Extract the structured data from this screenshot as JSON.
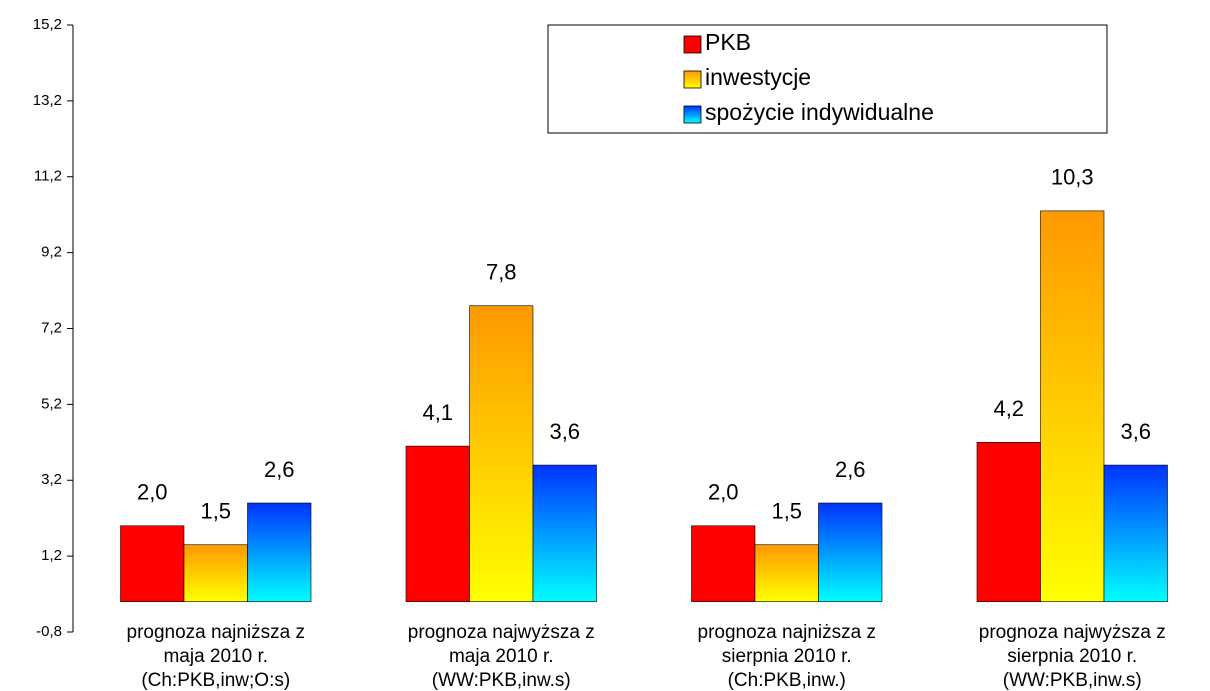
{
  "chart_data": {
    "type": "bar",
    "categories": [
      [
        "prognoza najniższa z",
        "maja 2010 r.",
        "(Ch:PKB,inw;O:s)"
      ],
      [
        "prognoza najwyższa z",
        "maja 2010 r.",
        "(WW:PKB,inw.s)"
      ],
      [
        "prognoza najniższa z",
        "sierpnia 2010 r.",
        "(Ch:PKB,inw.)"
      ],
      [
        "prognoza najwyższa z",
        "sierpnia 2010 r.",
        "(WW:PKB,inw.s)"
      ]
    ],
    "series": [
      {
        "name": "PKB",
        "color": "#ff0000",
        "color_bottom": "#ff0000",
        "values": [
          2.0,
          4.1,
          2.0,
          4.2
        ],
        "value_labels": [
          "2,0",
          "4,1",
          "2,0",
          "4,2"
        ]
      },
      {
        "name": "inwestycje",
        "color": "#ff9900",
        "color_bottom": "#ffff00",
        "values": [
          1.5,
          7.8,
          1.5,
          10.3
        ],
        "value_labels": [
          "1,5",
          "7,8",
          "1,5",
          "10,3"
        ]
      },
      {
        "name": "spożycie indywidualne",
        "color": "#0033ff",
        "color_bottom": "#00ffff",
        "values": [
          2.6,
          3.6,
          2.6,
          3.6
        ],
        "value_labels": [
          "2,6",
          "3,6",
          "2,6",
          "3,6"
        ]
      }
    ],
    "ylim": [
      -0.8,
      15.2
    ],
    "yticks": [
      {
        "value": -0.8,
        "label": "-0,8"
      },
      {
        "value": 1.2,
        "label": "1,2"
      },
      {
        "value": 3.2,
        "label": "3,2"
      },
      {
        "value": 5.2,
        "label": "5,2"
      },
      {
        "value": 7.2,
        "label": "7,2"
      },
      {
        "value": 9.2,
        "label": "9,2"
      },
      {
        "value": 11.2,
        "label": "11,2"
      },
      {
        "value": 13.2,
        "label": "13,2"
      },
      {
        "value": 15.2,
        "label": "15,2"
      }
    ],
    "grid": false,
    "legend": "top-right"
  }
}
